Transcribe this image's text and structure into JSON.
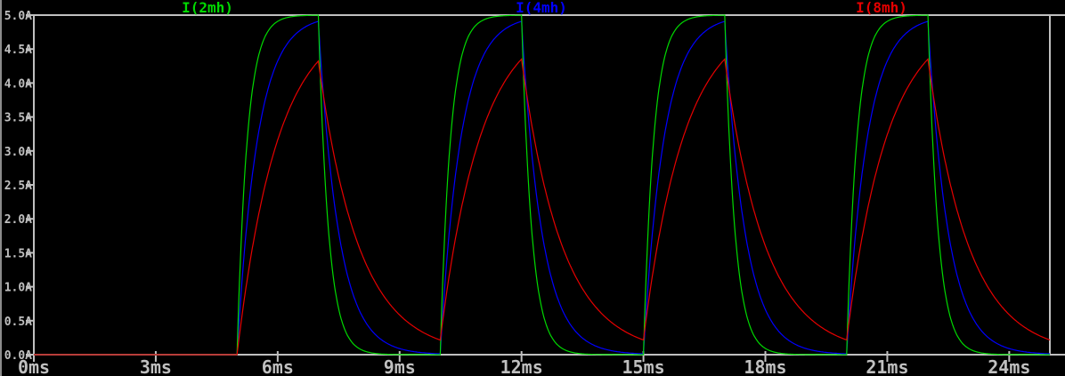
{
  "window": {
    "background_color": "#000000",
    "axis_color": "#c0c0c0",
    "tick_text_color": "#c0c0c0",
    "left_edge_color": "#8c8c8c"
  },
  "chart_data": {
    "type": "line",
    "title": "",
    "grid": false,
    "legend_position": "top",
    "x_axis": {
      "unit": "ms",
      "min": 0,
      "max": 25,
      "tick_step": 3,
      "ticks": [
        {
          "value": 0,
          "label": "0ms"
        },
        {
          "value": 3,
          "label": "3ms"
        },
        {
          "value": 6,
          "label": "6ms"
        },
        {
          "value": 9,
          "label": "9ms"
        },
        {
          "value": 12,
          "label": "12ms"
        },
        {
          "value": 15,
          "label": "15ms"
        },
        {
          "value": 18,
          "label": "18ms"
        },
        {
          "value": 21,
          "label": "21ms"
        },
        {
          "value": 24,
          "label": "24ms"
        }
      ]
    },
    "y_axis": {
      "unit": "A",
      "min": 0,
      "max": 5,
      "tick_step": 0.5,
      "ticks": [
        {
          "value": 0.0,
          "label": "0.0A"
        },
        {
          "value": 0.5,
          "label": "0.5A"
        },
        {
          "value": 1.0,
          "label": "1.0A"
        },
        {
          "value": 1.5,
          "label": "1.5A"
        },
        {
          "value": 2.0,
          "label": "2.0A"
        },
        {
          "value": 2.5,
          "label": "2.5A"
        },
        {
          "value": 3.0,
          "label": "3.0A"
        },
        {
          "value": 3.5,
          "label": "3.5A"
        },
        {
          "value": 4.0,
          "label": "4.0A"
        },
        {
          "value": 4.5,
          "label": "4.5A"
        },
        {
          "value": 5.0,
          "label": "5.0A"
        }
      ]
    },
    "excitation": {
      "waveform": "pulse_train",
      "amplitude_A": 5,
      "first_rise_ms": 5,
      "on_time_ms": 2,
      "period_ms": 5
    },
    "model": "RL charge/discharge: I(t) = Itarget + (I0 - Itarget) * exp(-(t-t0)/tau)",
    "sample_step_ms": 0.02,
    "series": [
      {
        "label": "I(2mh)",
        "color": "#00d900",
        "inductance_mH": 2,
        "tau_ms": 0.25,
        "peak_A": 5.0,
        "trough_A": 0.0
      },
      {
        "label": "I(4mh)",
        "color": "#0000ff",
        "inductance_mH": 4,
        "tau_ms": 0.5,
        "peak_A": 4.91,
        "trough_A": 0.01
      },
      {
        "label": "I(8mh)",
        "color": "#e60000",
        "inductance_mH": 8,
        "tau_ms": 1.0,
        "peak_A": 4.35,
        "trough_A": 0.22
      }
    ]
  }
}
